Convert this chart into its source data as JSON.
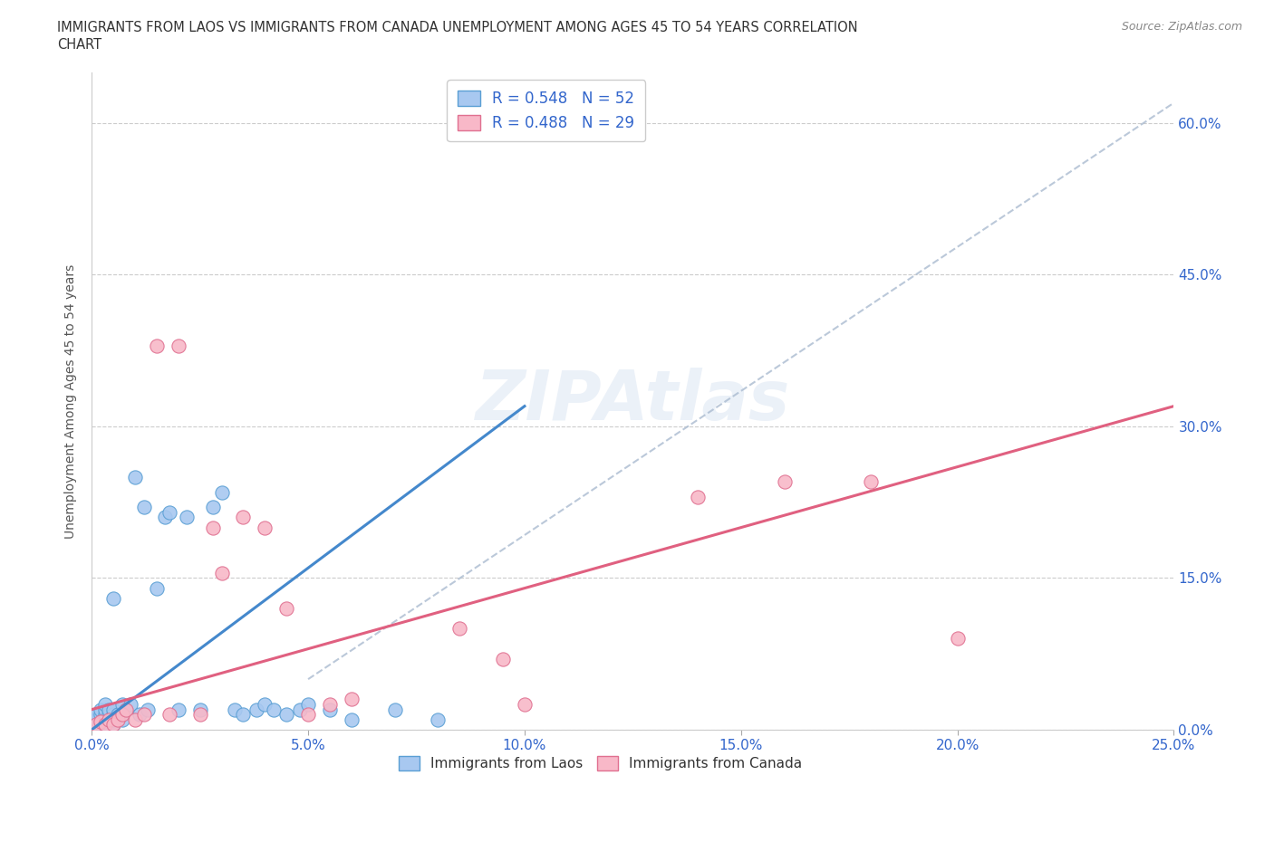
{
  "title_line1": "IMMIGRANTS FROM LAOS VS IMMIGRANTS FROM CANADA UNEMPLOYMENT AMONG AGES 45 TO 54 YEARS CORRELATION",
  "title_line2": "CHART",
  "source": "Source: ZipAtlas.com",
  "ylabel": "Unemployment Among Ages 45 to 54 years",
  "xlim": [
    0.0,
    0.25
  ],
  "ylim": [
    0.0,
    0.65
  ],
  "xticks": [
    0.0,
    0.05,
    0.1,
    0.15,
    0.2,
    0.25
  ],
  "yticks": [
    0.0,
    0.15,
    0.3,
    0.45,
    0.6
  ],
  "xtick_labels": [
    "0.0%",
    "5.0%",
    "10.0%",
    "15.0%",
    "20.0%",
    "25.0%"
  ],
  "ytick_labels": [
    "0.0%",
    "15.0%",
    "30.0%",
    "45.0%",
    "60.0%"
  ],
  "laos_color": "#a8c8f0",
  "laos_edge_color": "#5a9fd4",
  "canada_color": "#f8b8c8",
  "canada_edge_color": "#e07090",
  "laos_line_color": "#4488cc",
  "canada_line_color": "#e06080",
  "ref_line_color": "#aabbd0",
  "legend_laos_R": "0.548",
  "legend_laos_N": "52",
  "legend_canada_R": "0.488",
  "legend_canada_N": "29",
  "watermark": "ZIPAtlas",
  "laos_x": [
    0.0005,
    0.001,
    0.001,
    0.001,
    0.002,
    0.002,
    0.002,
    0.002,
    0.003,
    0.003,
    0.003,
    0.003,
    0.003,
    0.004,
    0.004,
    0.004,
    0.004,
    0.005,
    0.005,
    0.005,
    0.005,
    0.005,
    0.006,
    0.006,
    0.007,
    0.007,
    0.008,
    0.009,
    0.01,
    0.011,
    0.012,
    0.013,
    0.015,
    0.017,
    0.018,
    0.02,
    0.022,
    0.025,
    0.028,
    0.03,
    0.033,
    0.035,
    0.038,
    0.04,
    0.042,
    0.045,
    0.048,
    0.05,
    0.055,
    0.06,
    0.07,
    0.08
  ],
  "laos_y": [
    0.01,
    0.005,
    0.01,
    0.015,
    0.005,
    0.01,
    0.015,
    0.02,
    0.005,
    0.01,
    0.015,
    0.02,
    0.025,
    0.005,
    0.01,
    0.015,
    0.02,
    0.005,
    0.01,
    0.015,
    0.02,
    0.13,
    0.01,
    0.015,
    0.01,
    0.025,
    0.02,
    0.025,
    0.25,
    0.015,
    0.22,
    0.02,
    0.14,
    0.21,
    0.215,
    0.02,
    0.21,
    0.02,
    0.22,
    0.235,
    0.02,
    0.015,
    0.02,
    0.025,
    0.02,
    0.015,
    0.02,
    0.025,
    0.02,
    0.01,
    0.02,
    0.01
  ],
  "canada_x": [
    0.001,
    0.002,
    0.003,
    0.004,
    0.005,
    0.006,
    0.007,
    0.008,
    0.01,
    0.012,
    0.015,
    0.018,
    0.02,
    0.025,
    0.028,
    0.03,
    0.035,
    0.04,
    0.045,
    0.05,
    0.055,
    0.06,
    0.085,
    0.095,
    0.1,
    0.14,
    0.16,
    0.18,
    0.2
  ],
  "canada_y": [
    0.005,
    0.008,
    0.005,
    0.01,
    0.005,
    0.01,
    0.015,
    0.02,
    0.01,
    0.015,
    0.38,
    0.015,
    0.38,
    0.015,
    0.2,
    0.155,
    0.21,
    0.2,
    0.12,
    0.015,
    0.025,
    0.03,
    0.1,
    0.07,
    0.025,
    0.23,
    0.245,
    0.245,
    0.09
  ],
  "laos_line_x": [
    0.0,
    0.1
  ],
  "laos_line_y": [
    0.0,
    0.32
  ],
  "canada_line_x": [
    0.0,
    0.25
  ],
  "canada_line_y": [
    0.02,
    0.32
  ],
  "ref_line_x": [
    0.05,
    0.25
  ],
  "ref_line_y": [
    0.05,
    0.62
  ]
}
